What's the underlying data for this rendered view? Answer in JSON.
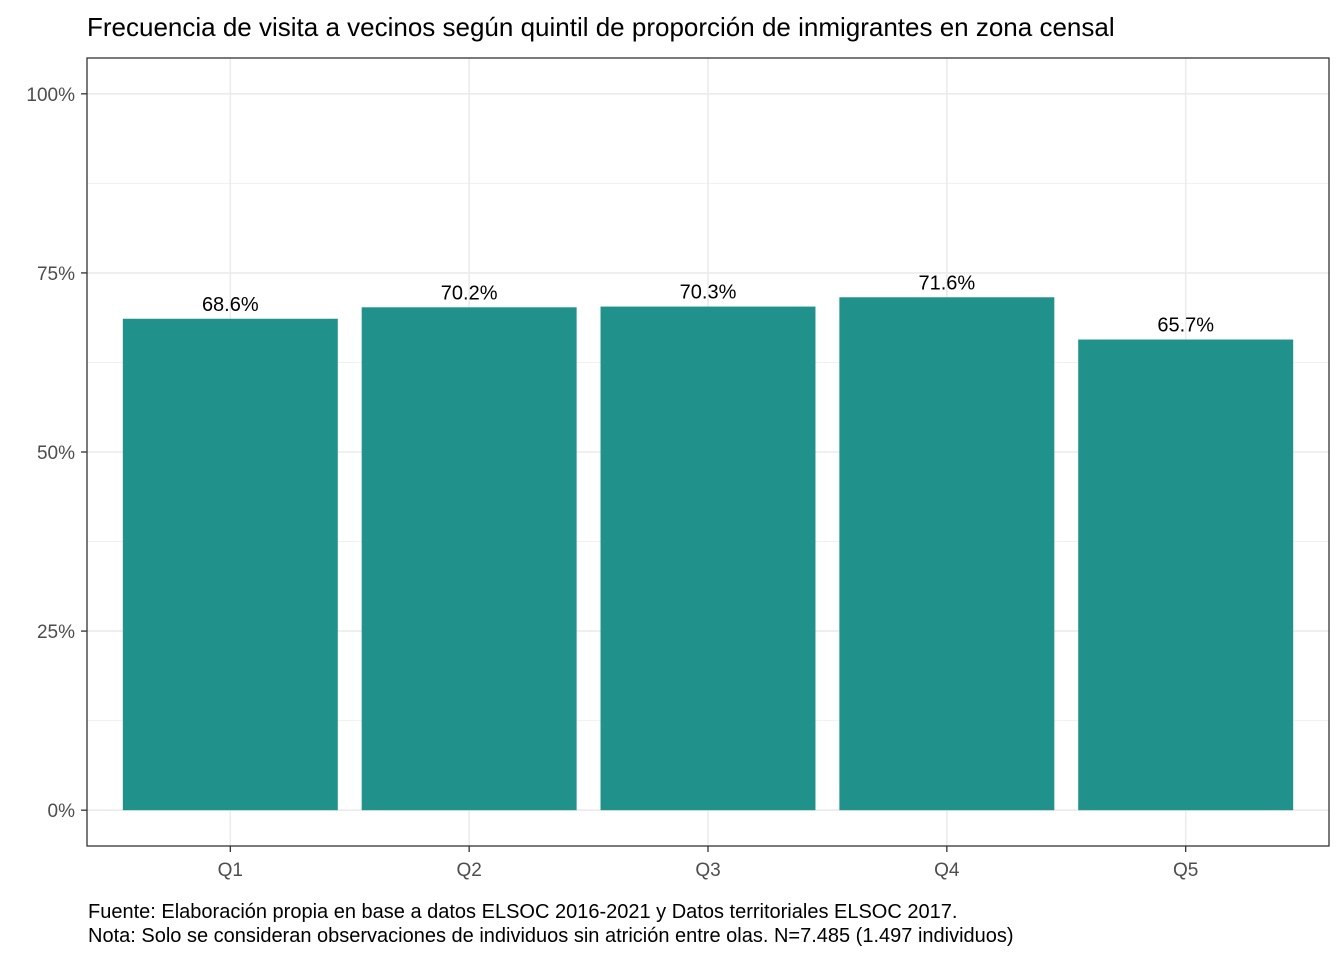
{
  "chart_data": {
    "type": "bar",
    "title": "Frecuencia de visita a vecinos según quintil de proporción de inmigrantes en zona censal",
    "categories": [
      "Q1",
      "Q2",
      "Q3",
      "Q4",
      "Q5"
    ],
    "values": [
      68.6,
      70.2,
      70.3,
      71.6,
      65.7
    ],
    "data_labels": [
      "68.6%",
      "70.2%",
      "70.3%",
      "71.6%",
      "65.7%"
    ],
    "y_ticks": [
      0,
      25,
      50,
      75,
      100
    ],
    "y_tick_labels": [
      "0%",
      "25%",
      "50%",
      "75%",
      "100%"
    ],
    "ylim": [
      -5,
      105
    ],
    "xlabel": "",
    "ylabel": "",
    "grid": true,
    "bar_color": "#21918c",
    "caption_lines": [
      "Fuente: Elaboración propia en base a datos ELSOC 2016-2021 y Datos territoriales ELSOC 2017.",
      "Nota: Solo se consideran observaciones de individuos sin atrición entre olas. N=7.485 (1.497 individuos)"
    ]
  }
}
